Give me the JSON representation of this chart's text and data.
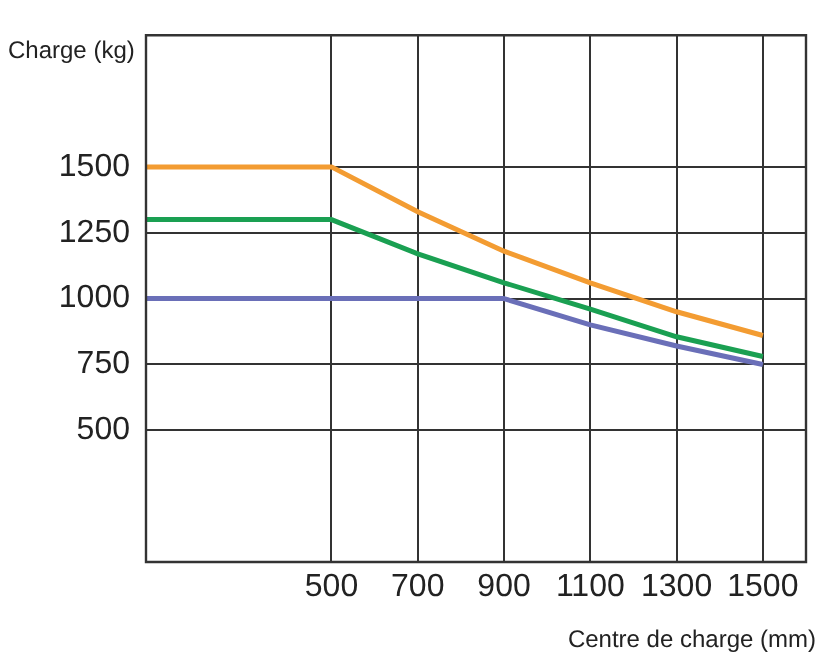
{
  "chart_data": {
    "type": "line",
    "xlabel": "Centre de charge (mm)",
    "ylabel": "Charge (kg)",
    "xlim": [
      70,
      1600
    ],
    "xticks": [
      500,
      700,
      900,
      1100,
      1300,
      1500
    ],
    "ylim": [
      0,
      2000
    ],
    "yticks": [
      500,
      750,
      1000,
      1250,
      1500
    ],
    "grid": true,
    "legend": false,
    "marker": "none",
    "line_style": "solid",
    "series": [
      {
        "color": "#f39c32",
        "x": [
          70,
          500,
          700,
          900,
          1100,
          1300,
          1500
        ],
        "values": [
          1500,
          1500,
          1330,
          1180,
          1060,
          950,
          860
        ]
      },
      {
        "color": "#1aa052",
        "x": [
          70,
          500,
          700,
          900,
          1100,
          1300,
          1500
        ],
        "values": [
          1300,
          1300,
          1170,
          1060,
          960,
          855,
          780
        ]
      },
      {
        "color": "#6a6fb8",
        "x": [
          70,
          500,
          900,
          1100,
          1300,
          1500
        ],
        "values": [
          1000,
          1000,
          1000,
          900,
          820,
          750
        ]
      }
    ]
  }
}
